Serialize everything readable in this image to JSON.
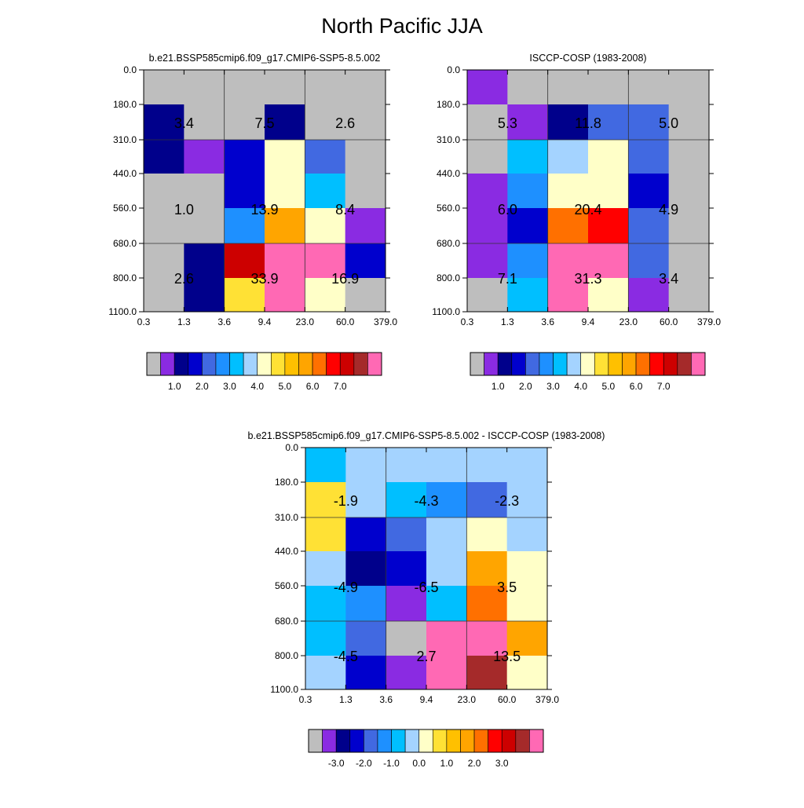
{
  "figure": {
    "title": "North Pacific JJA"
  },
  "chart_data": [
    {
      "type": "heatmap",
      "title": "b.e21.BSSP585cmip6.f09_g17.CMIP6-SSP5-8.5.002",
      "x_tick_labels": [
        "0.3",
        "1.3",
        "3.6",
        "9.4",
        "23.0",
        "60.0",
        "379.0"
      ],
      "y_tick_labels": [
        "0.0",
        "180.0",
        "310.0",
        "440.0",
        "560.0",
        "680.0",
        "800.0",
        "1100.0"
      ],
      "cell_colors": [
        [
          "#bebebe",
          "#bebebe",
          "#bebebe",
          "#bebebe",
          "#bebebe",
          "#bebebe"
        ],
        [
          "#00008b",
          "#bebebe",
          "#bebebe",
          "#00008b",
          "#bebebe",
          "#bebebe"
        ],
        [
          "#00008b",
          "#8a2be2",
          "#0000cd",
          "#ffffc8",
          "#4169e1",
          "#bebebe"
        ],
        [
          "#bebebe",
          "#bebebe",
          "#0000cd",
          "#ffffc8",
          "#00bfff",
          "#bebebe"
        ],
        [
          "#bebebe",
          "#bebebe",
          "#1e90ff",
          "#ffa500",
          "#ffffc8",
          "#8a2be2"
        ],
        [
          "#bebebe",
          "#00008b",
          "#cd0000",
          "#ff69b4",
          "#ff69b4",
          "#0000cd"
        ],
        [
          "#bebebe",
          "#00008b",
          "#ffe135",
          "#ff69b4",
          "#ffffc8",
          "#bebebe"
        ]
      ],
      "block_labels": [
        [
          "3.4",
          "7.5",
          "2.6"
        ],
        [
          "1.0",
          "13.9",
          "8.4"
        ],
        [
          "2.6",
          "33.9",
          "16.9"
        ]
      ],
      "colorbar": {
        "labels": [
          "1.0",
          "2.0",
          "3.0",
          "4.0",
          "5.0",
          "6.0",
          "7.0"
        ]
      }
    },
    {
      "type": "heatmap",
      "title": "ISCCP-COSP (1983-2008)",
      "x_tick_labels": [
        "0.3",
        "1.3",
        "3.6",
        "9.4",
        "23.0",
        "60.0",
        "379.0"
      ],
      "y_tick_labels": [
        "0.0",
        "180.0",
        "310.0",
        "440.0",
        "560.0",
        "680.0",
        "800.0",
        "1100.0"
      ],
      "cell_colors": [
        [
          "#8a2be2",
          "#bebebe",
          "#bebebe",
          "#bebebe",
          "#bebebe",
          "#bebebe"
        ],
        [
          "#bebebe",
          "#8a2be2",
          "#00008b",
          "#4169e1",
          "#4169e1",
          "#bebebe"
        ],
        [
          "#bebebe",
          "#00bfff",
          "#a4d3ff",
          "#ffffc8",
          "#4169e1",
          "#bebebe"
        ],
        [
          "#8a2be2",
          "#1e90ff",
          "#ffffc8",
          "#ffffc8",
          "#0000cd",
          "#bebebe"
        ],
        [
          "#8a2be2",
          "#0000cd",
          "#ff7000",
          "#ff0000",
          "#4169e1",
          "#bebebe"
        ],
        [
          "#8a2be2",
          "#1e90ff",
          "#ff69b4",
          "#ff69b4",
          "#4169e1",
          "#bebebe"
        ],
        [
          "#bebebe",
          "#00bfff",
          "#ff69b4",
          "#ffffc8",
          "#8a2be2",
          "#bebebe"
        ]
      ],
      "block_labels": [
        [
          "5.3",
          "11.8",
          "5.0"
        ],
        [
          "6.0",
          "20.4",
          "4.9"
        ],
        [
          "7.1",
          "31.3",
          "3.4"
        ]
      ],
      "colorbar": {
        "labels": [
          "1.0",
          "2.0",
          "3.0",
          "4.0",
          "5.0",
          "6.0",
          "7.0"
        ]
      }
    },
    {
      "type": "heatmap",
      "title": "b.e21.BSSP585cmip6.f09_g17.CMIP6-SSP5-8.5.002 - ISCCP-COSP (1983-2008)",
      "x_tick_labels": [
        "0.3",
        "1.3",
        "3.6",
        "9.4",
        "23.0",
        "60.0",
        "379.0"
      ],
      "y_tick_labels": [
        "0.0",
        "180.0",
        "310.0",
        "440.0",
        "560.0",
        "680.0",
        "800.0",
        "1100.0"
      ],
      "cell_colors": [
        [
          "#00bfff",
          "#a4d3ff",
          "#a4d3ff",
          "#a4d3ff",
          "#a4d3ff",
          "#a4d3ff"
        ],
        [
          "#ffe135",
          "#a4d3ff",
          "#00bfff",
          "#1e90ff",
          "#4169e1",
          "#a4d3ff"
        ],
        [
          "#ffe135",
          "#0000cd",
          "#4169e1",
          "#a4d3ff",
          "#ffffc8",
          "#a4d3ff"
        ],
        [
          "#a4d3ff",
          "#00008b",
          "#0000cd",
          "#a4d3ff",
          "#ffa500",
          "#ffffc8"
        ],
        [
          "#00bfff",
          "#1e90ff",
          "#8a2be2",
          "#00bfff",
          "#ff7000",
          "#ffffc8"
        ],
        [
          "#00bfff",
          "#4169e1",
          "#bebebe",
          "#ff69b4",
          "#ff69b4",
          "#ffa500"
        ],
        [
          "#a4d3ff",
          "#0000cd",
          "#8a2be2",
          "#ff69b4",
          "#a52a2a",
          "#ffffc8"
        ]
      ],
      "block_labels": [
        [
          "-1.9",
          "-4.3",
          "-2.3"
        ],
        [
          "-4.9",
          "-6.5",
          "3.5"
        ],
        [
          "-4.5",
          "2.7",
          "13.5"
        ]
      ],
      "colorbar": {
        "labels": [
          "-3.0",
          "-2.0",
          "-1.0",
          "0.0",
          "1.0",
          "2.0",
          "3.0"
        ]
      }
    }
  ],
  "colorbar_palette": [
    "#bebebe",
    "#8a2be2",
    "#00008b",
    "#0000cd",
    "#4169e1",
    "#1e90ff",
    "#00bfff",
    "#a4d3ff",
    "#ffffc8",
    "#ffe135",
    "#ffc000",
    "#ffa500",
    "#ff7000",
    "#ff0000",
    "#cd0000",
    "#a52a2a",
    "#ff69b4"
  ]
}
